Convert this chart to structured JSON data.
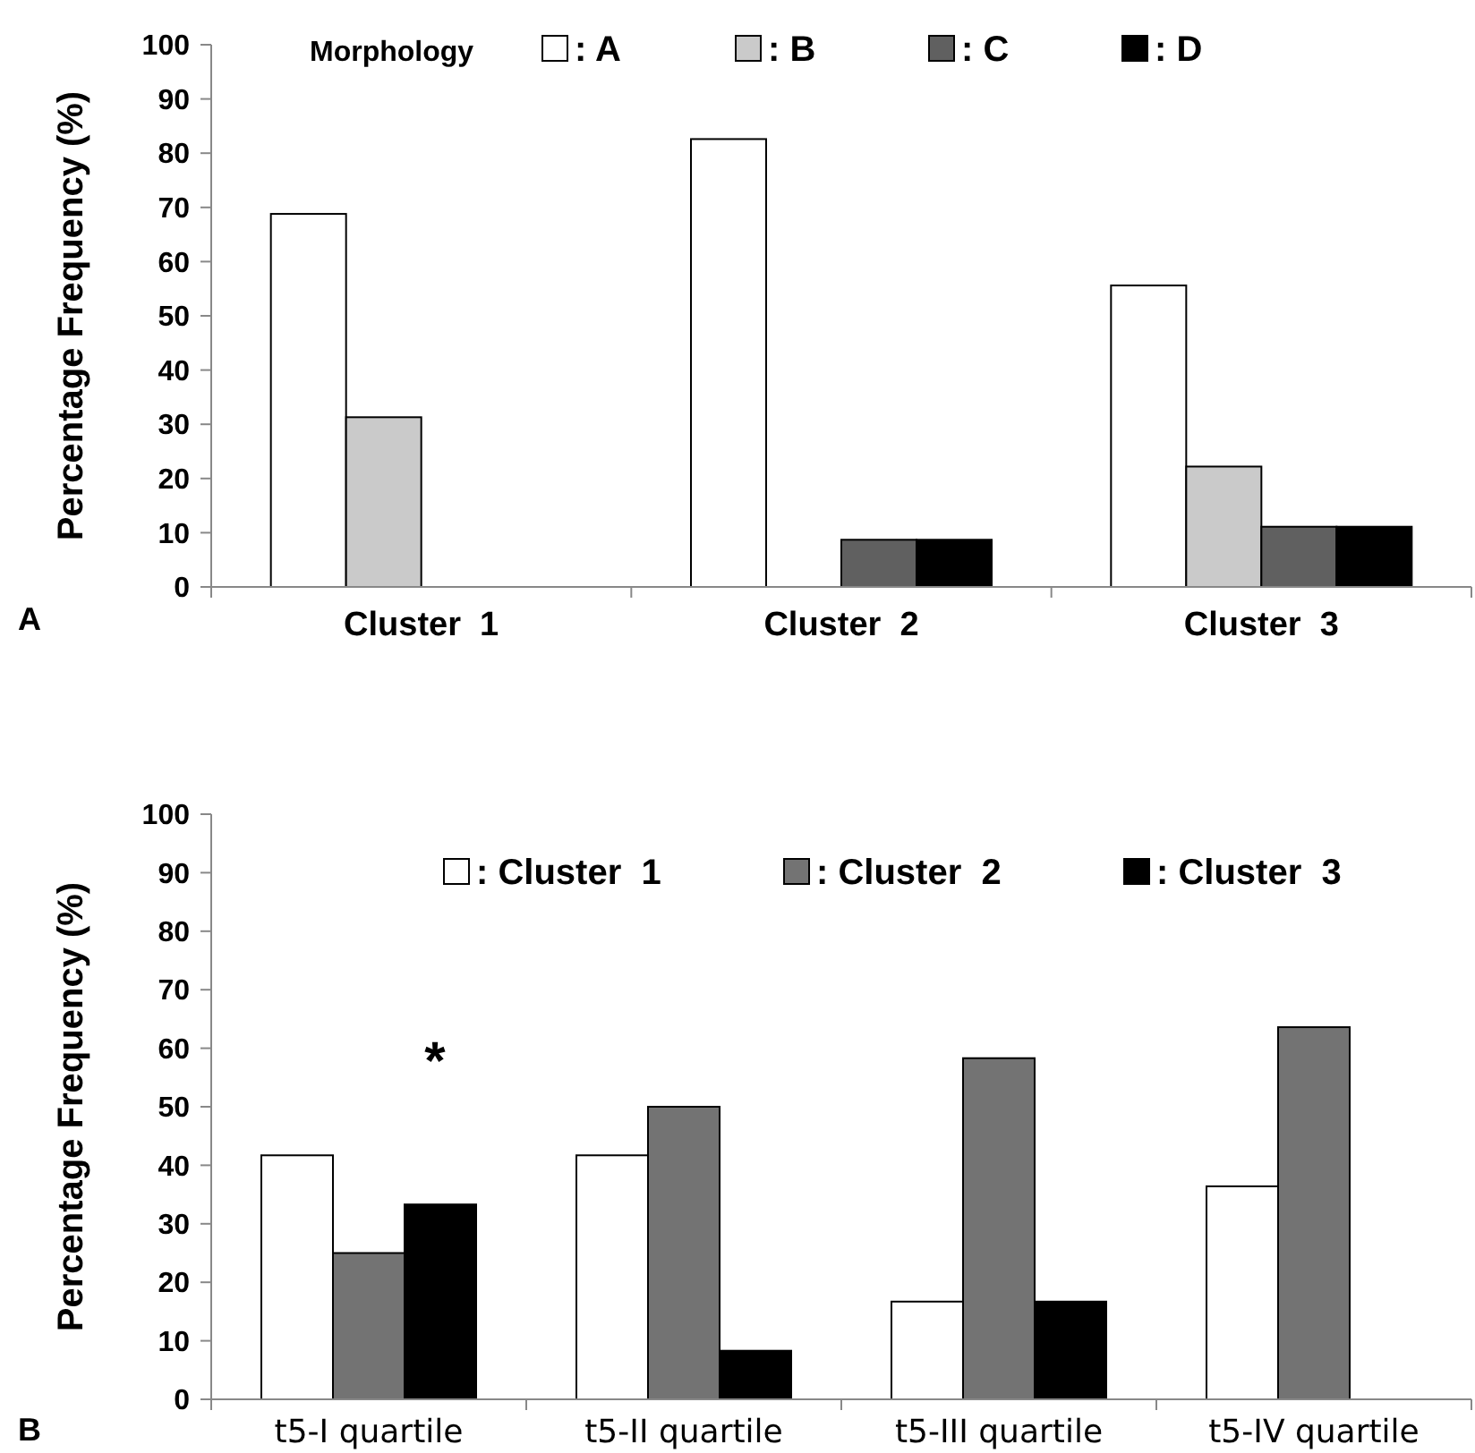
{
  "chart_data": [
    {
      "type": "bar",
      "ylabel": "Percentage Frequency (%)",
      "legend_title": "Morphology",
      "categories": [
        "Cluster  1",
        "Cluster  2",
        "Cluster  3"
      ],
      "series": [
        {
          "name": ": A",
          "color": "#ffffff",
          "values": [
            68.8,
            82.6,
            55.6
          ]
        },
        {
          "name": ": B",
          "color": "#cacaca",
          "values": [
            31.3,
            0,
            22.2
          ]
        },
        {
          "name": ": C",
          "color": "#606060",
          "values": [
            0,
            8.7,
            11.1
          ]
        },
        {
          "name": ": D",
          "color": "#000000",
          "values": [
            0,
            8.7,
            11.1
          ]
        }
      ],
      "ylim": [
        0,
        100
      ],
      "yticks": [
        0,
        10,
        20,
        30,
        40,
        50,
        60,
        70,
        80,
        90,
        100
      ],
      "legend": "top",
      "annotations": [
        "A"
      ]
    },
    {
      "type": "bar",
      "ylabel": "Percentage Frequency (%)",
      "categories": [
        "t5-I quartile",
        "t5-II quartile",
        "t5-III quartile",
        "t5-IV quartile"
      ],
      "series": [
        {
          "name": ": Cluster  1",
          "color": "#ffffff",
          "values": [
            41.7,
            41.7,
            16.7,
            36.4
          ]
        },
        {
          "name": ": Cluster  2",
          "color": "#737373",
          "values": [
            25,
            50,
            58.3,
            63.6
          ]
        },
        {
          "name": ": Cluster  3",
          "color": "#000000",
          "values": [
            33.3,
            8.3,
            16.7,
            0
          ]
        }
      ],
      "ylim": [
        0,
        100
      ],
      "yticks": [
        0,
        10,
        20,
        30,
        40,
        50,
        60,
        70,
        80,
        90,
        100
      ],
      "legend": "top",
      "annotations": [
        "B",
        "*"
      ]
    }
  ]
}
